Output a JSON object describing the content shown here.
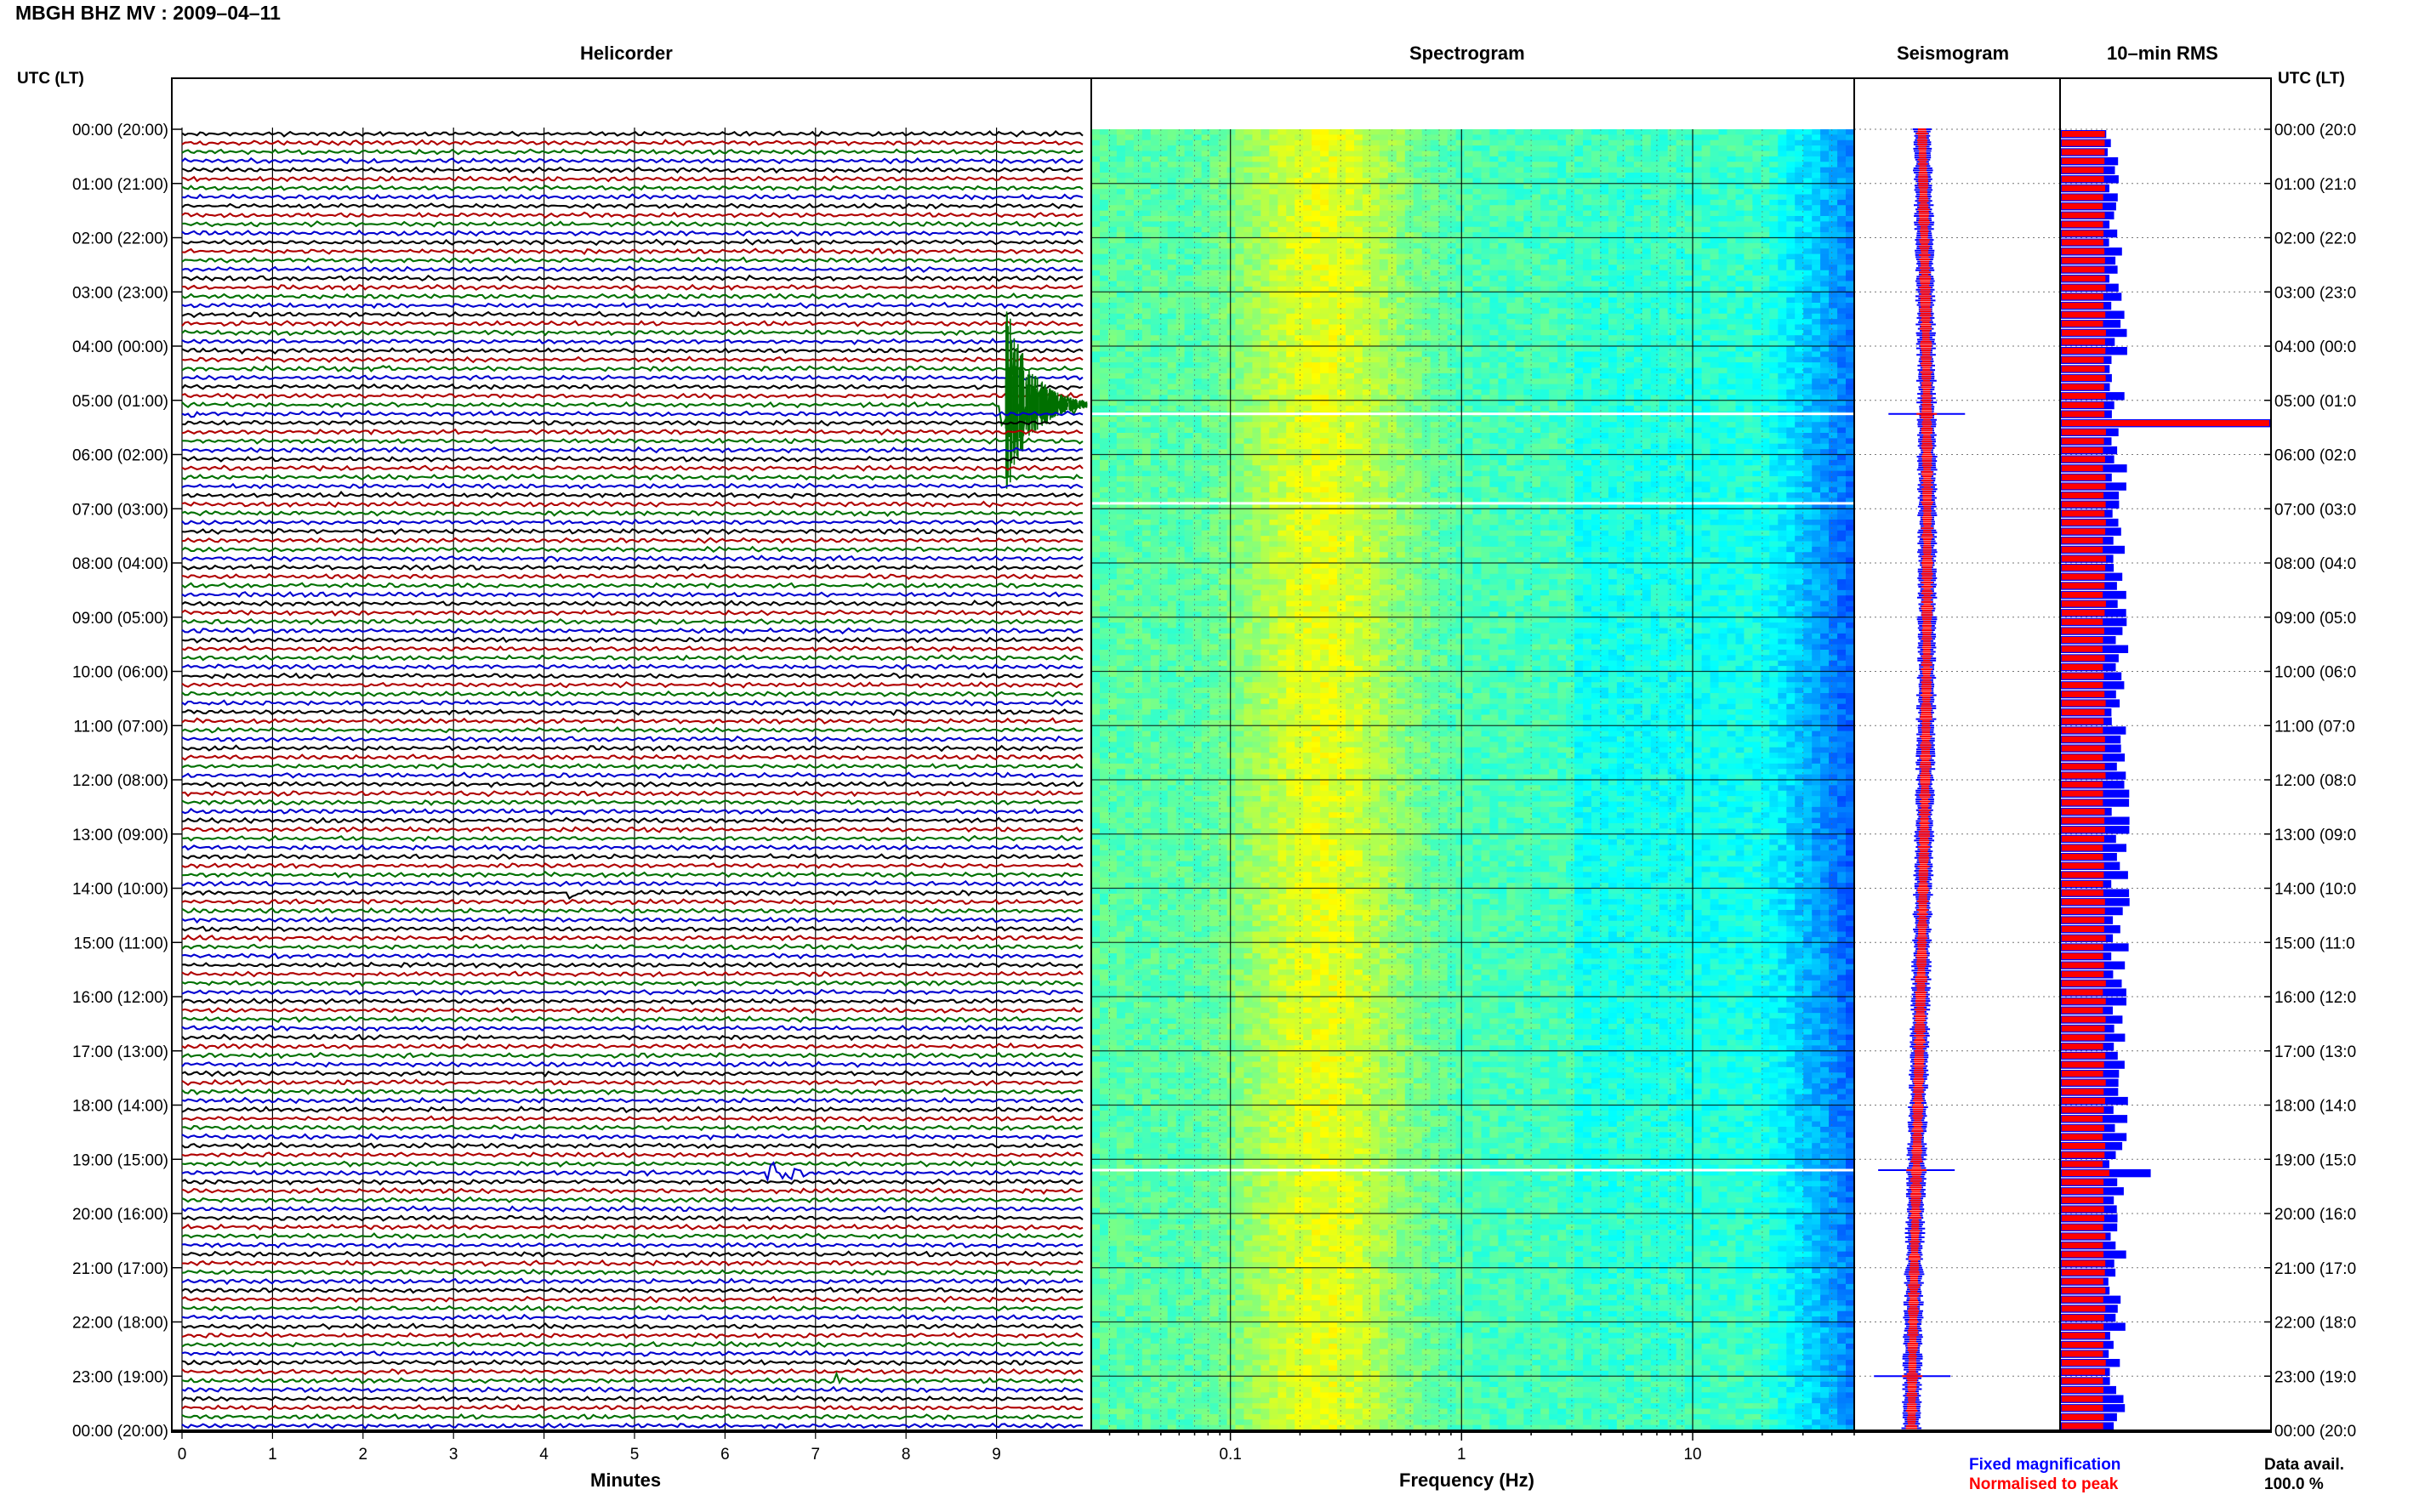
{
  "title": "MBGH BHZ MV : 2009–04–11",
  "panels": {
    "helicorder": "Helicorder",
    "spectrogram": "Spectrogram",
    "seismogram": "Seismogram",
    "rms": "10–min RMS"
  },
  "axis_label_left": "UTC (LT)",
  "axis_label_right": "UTC (LT)",
  "xlabel_helicorder": "Minutes",
  "xlabel_spectrogram": "Frequency (Hz)",
  "legend": {
    "fixed": "Fixed magnification",
    "normalised": "Normalised to peak"
  },
  "data_avail": {
    "label": "Data avail.",
    "value": "100.0 %"
  },
  "colors": {
    "trace_cycle": [
      "#000000",
      "#b00000",
      "#007000",
      "#0000d0"
    ],
    "fixed_magnification": "#0000ff",
    "normalised_to_peak": "#ff0000"
  },
  "chart_data": [
    {
      "type": "line",
      "name": "helicorder",
      "title": "Helicorder",
      "xlabel": "Minutes",
      "xlim": [
        0,
        10
      ],
      "x_ticks": [
        0,
        1,
        2,
        3,
        4,
        5,
        6,
        7,
        8,
        9
      ],
      "rows_per_hour": 6,
      "hours": 24,
      "y_ticks_left": [
        "00:00 (20:00)",
        "01:00 (21:00)",
        "02:00 (22:00)",
        "03:00 (23:00)",
        "04:00 (00:00)",
        "05:00 (01:00)",
        "06:00 (02:00)",
        "07:00 (03:00)",
        "08:00 (04:00)",
        "09:00 (05:00)",
        "10:00 (06:00)",
        "11:00 (07:00)",
        "12:00 (08:00)",
        "13:00 (09:00)",
        "14:00 (10:00)",
        "15:00 (11:00)",
        "16:00 (12:00)",
        "17:00 (13:00)",
        "18:00 (14:00)",
        "19:00 (15:00)",
        "20:00 (16:00)",
        "21:00 (17:00)",
        "22:00 (18:00)",
        "23:00 (19:00)",
        "00:00 (20:00)"
      ],
      "y_ticks_right": [
        "00:00 (20:0",
        "01:00 (21:0",
        "02:00 (22:0",
        "03:00 (23:0",
        "04:00 (00:0",
        "05:00 (01:0",
        "06:00 (02:0",
        "07:00 (03:0",
        "08:00 (04:0",
        "09:00 (05:0",
        "10:00 (06:0",
        "11:00 (07:0",
        "12:00 (08:0",
        "13:00 (09:0",
        "14:00 (10:0",
        "15:00 (11:0",
        "16:00 (12:0",
        "17:00 (13:0",
        "18:00 (14:0",
        "19:00 (15:0",
        "20:00 (16:0",
        "21:00 (17:0",
        "22:00 (18:0",
        "23:00 (19:0",
        "00:00 (20:0"
      ],
      "events": [
        {
          "row": 30,
          "minute": 9.1,
          "amplitude": 4.5,
          "duration_min": 0.9
        },
        {
          "row": 115,
          "minute": 6.5,
          "amplitude": 0.8,
          "duration_min": 0.6
        },
        {
          "row": 138,
          "minute": 7.2,
          "amplitude": 0.9,
          "duration_min": 0.3
        },
        {
          "row": 26,
          "minute": 2.2,
          "amplitude": 0.3,
          "duration_min": 0.15
        },
        {
          "row": 84,
          "minute": 4.3,
          "amplitude": 0.3,
          "duration_min": 0.3
        },
        {
          "row": 120,
          "minute": 1.0,
          "amplitude": 0.3,
          "duration_min": 0.2
        },
        {
          "row": 31,
          "minute": 0.1,
          "amplitude": 0.4,
          "duration_min": 0.2
        },
        {
          "row": 40,
          "minute": 1.7,
          "amplitude": 0.3,
          "duration_min": 0.2
        }
      ]
    },
    {
      "type": "heatmap",
      "name": "spectrogram",
      "title": "Spectrogram",
      "xlabel": "Frequency (Hz)",
      "x_scale": "log",
      "xlim": [
        0.025,
        50
      ],
      "x_ticks": [
        0.1,
        1,
        10
      ],
      "x_tick_labels": [
        "0.1",
        "1",
        "10"
      ],
      "colormap": "jet",
      "gaps_hours": [
        5.25,
        6.9,
        19.2
      ]
    },
    {
      "type": "line",
      "name": "seismogram",
      "title": "Seismogram",
      "series": [
        {
          "name": "Fixed magnification",
          "color": "#0000ff"
        },
        {
          "name": "Normalised to peak",
          "color": "#ff0000"
        }
      ],
      "events_hours": [
        5.25,
        19.2,
        23.0
      ]
    },
    {
      "type": "bar",
      "name": "rms",
      "title": "10–min RMS",
      "orientation": "horizontal",
      "series": [
        {
          "name": "Fixed magnification",
          "color": "#0000ff"
        },
        {
          "name": "Normalised to peak",
          "color": "#ff0000"
        }
      ],
      "peaks": [
        {
          "hour": 5.25,
          "relative": 1.0
        },
        {
          "hour": 19.2,
          "relative": 0.43
        }
      ]
    }
  ]
}
